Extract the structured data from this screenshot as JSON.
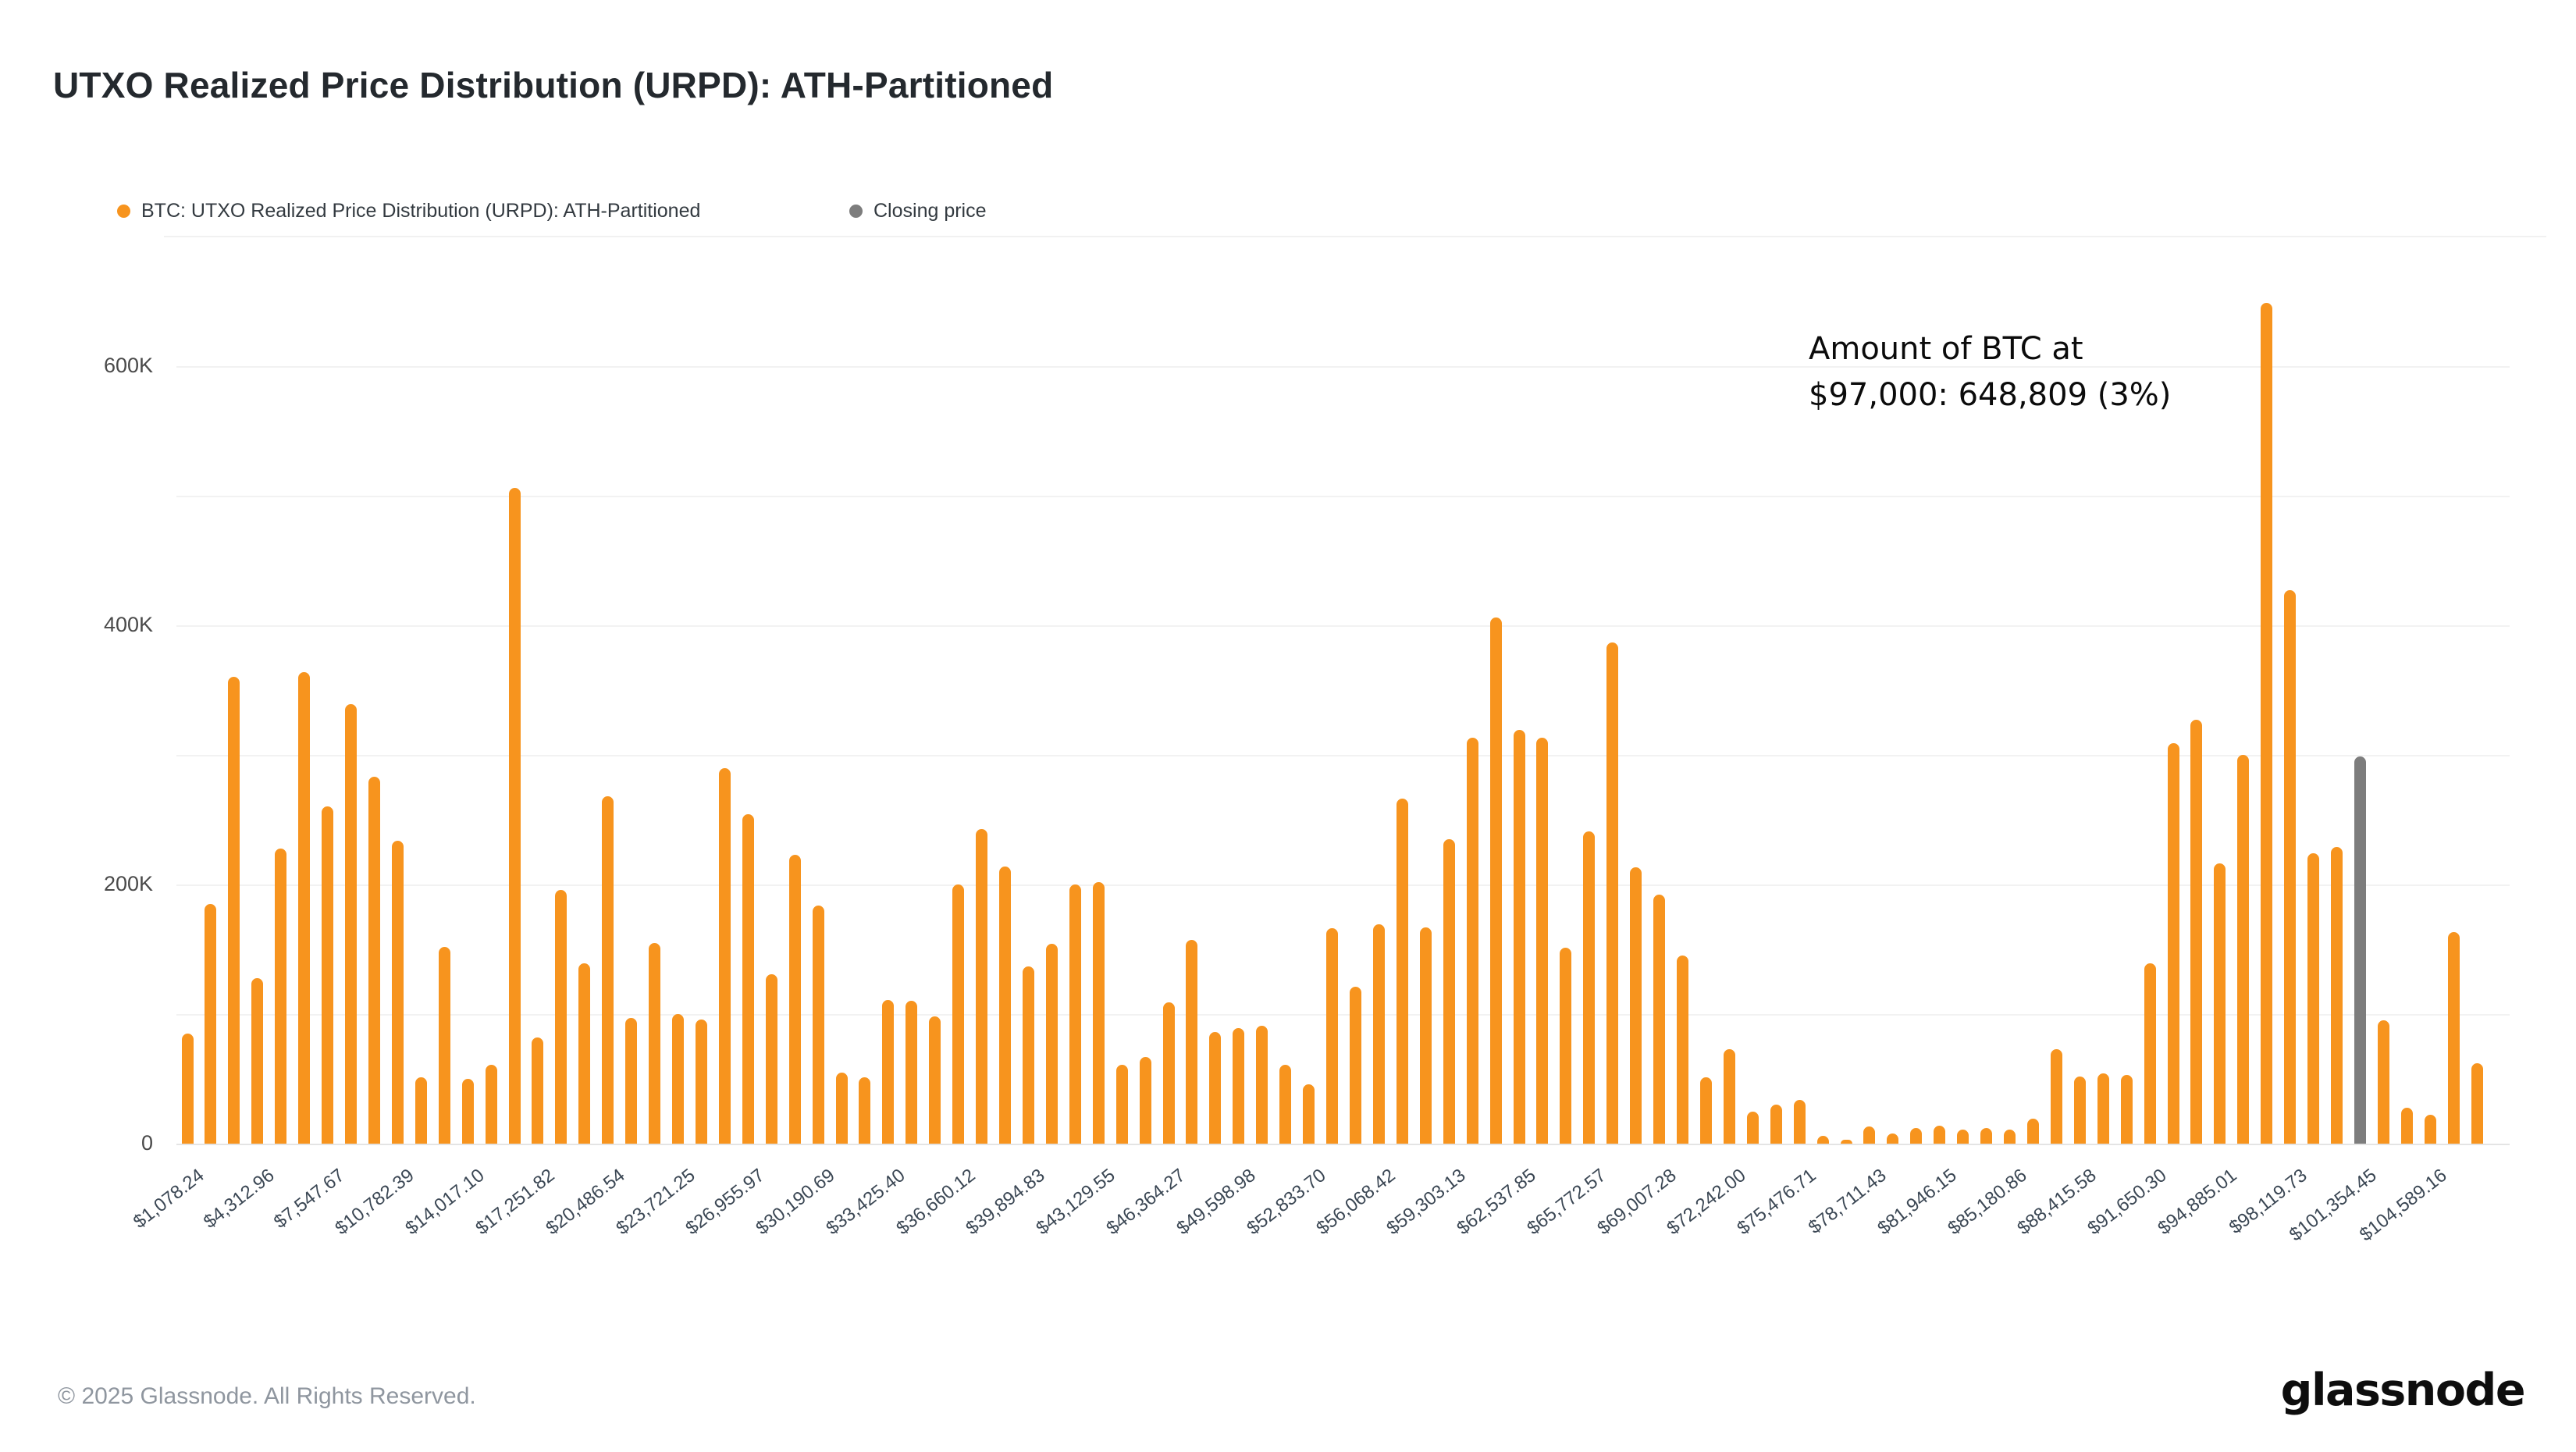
{
  "title": "UTXO Realized Price Distribution (URPD): ATH-Partitioned",
  "legend": {
    "items": [
      {
        "label": "BTC: UTXO Realized Price Distribution (URPD): ATH-Partitioned",
        "color": "#F7941E"
      },
      {
        "label": "Closing price",
        "color": "#7D7D7D"
      }
    ]
  },
  "annotation": {
    "line1": "Amount of BTC at",
    "line2": "$97,000: 648,809 (3%)"
  },
  "footer": {
    "copyright": "© 2025 Glassnode. All Rights Reserved.",
    "logo": "glassnode"
  },
  "chart_data": {
    "type": "bar",
    "title": "UTXO Realized Price Distribution (URPD): ATH-Partitioned",
    "xlabel": "",
    "ylabel": "",
    "ylim": [
      0,
      650000
    ],
    "grid": true,
    "legend_position": "top-left",
    "bin_width_usd": 1078.24,
    "yticks": {
      "labels": [
        "600K",
        "400K",
        "200K",
        "0"
      ],
      "values": [
        600000,
        400000,
        200000,
        0
      ]
    },
    "gridline_values": [
      600000,
      500000,
      400000,
      300000,
      200000,
      100000,
      0
    ],
    "x_tick_labels": [
      "$1,078.24",
      "$4,312.96",
      "$7,547.67",
      "$10,782.39",
      "$14,017.10",
      "$17,251.82",
      "$20,486.54",
      "$23,721.25",
      "$26,955.97",
      "$30,190.69",
      "$33,425.40",
      "$36,660.12",
      "$39,894.83",
      "$43,129.55",
      "$46,364.27",
      "$49,598.98",
      "$52,833.70",
      "$56,068.42",
      "$59,303.13",
      "$62,537.85",
      "$65,772.57",
      "$69,007.28",
      "$72,242.00",
      "$75,476.71",
      "$78,711.43",
      "$81,946.15",
      "$85,180.86",
      "$88,415.58",
      "$91,650.30",
      "$94,885.01",
      "$98,119.73",
      "$101,354.45",
      "$104,589.16"
    ],
    "x_tick_every_n_bins": 3,
    "values": [
      85000,
      185000,
      360000,
      128000,
      228000,
      364000,
      260000,
      339000,
      283000,
      234000,
      51000,
      152000,
      50000,
      61000,
      506000,
      82000,
      196000,
      139000,
      268000,
      97000,
      155000,
      100000,
      96000,
      290000,
      254000,
      131000,
      223000,
      184000,
      55000,
      51000,
      111000,
      110000,
      98000,
      200000,
      243000,
      214000,
      137000,
      154000,
      200000,
      202000,
      61000,
      67000,
      109000,
      157000,
      86000,
      89000,
      91000,
      61000,
      46000,
      166000,
      121000,
      169000,
      266000,
      167000,
      235000,
      313000,
      406000,
      319000,
      313000,
      151000,
      241000,
      387000,
      213000,
      192000,
      145000,
      51000,
      73000,
      25000,
      30000,
      34000,
      6000,
      3000,
      13000,
      8000,
      12000,
      14000,
      11000,
      12000,
      11000,
      19000,
      73000,
      52000,
      54000,
      53000,
      139000,
      309000,
      327000,
      216000,
      300000,
      648809,
      427000,
      224000,
      229000,
      299000,
      95000,
      28000,
      22000,
      163000,
      62000
    ],
    "closing_price_bin_index": 93,
    "highlighted_bin": {
      "price": "$97,000",
      "amount_btc": 648809,
      "percent": "3%"
    },
    "bar_color": "#F7941E",
    "closing_bar_color": "#7D7D7D"
  }
}
